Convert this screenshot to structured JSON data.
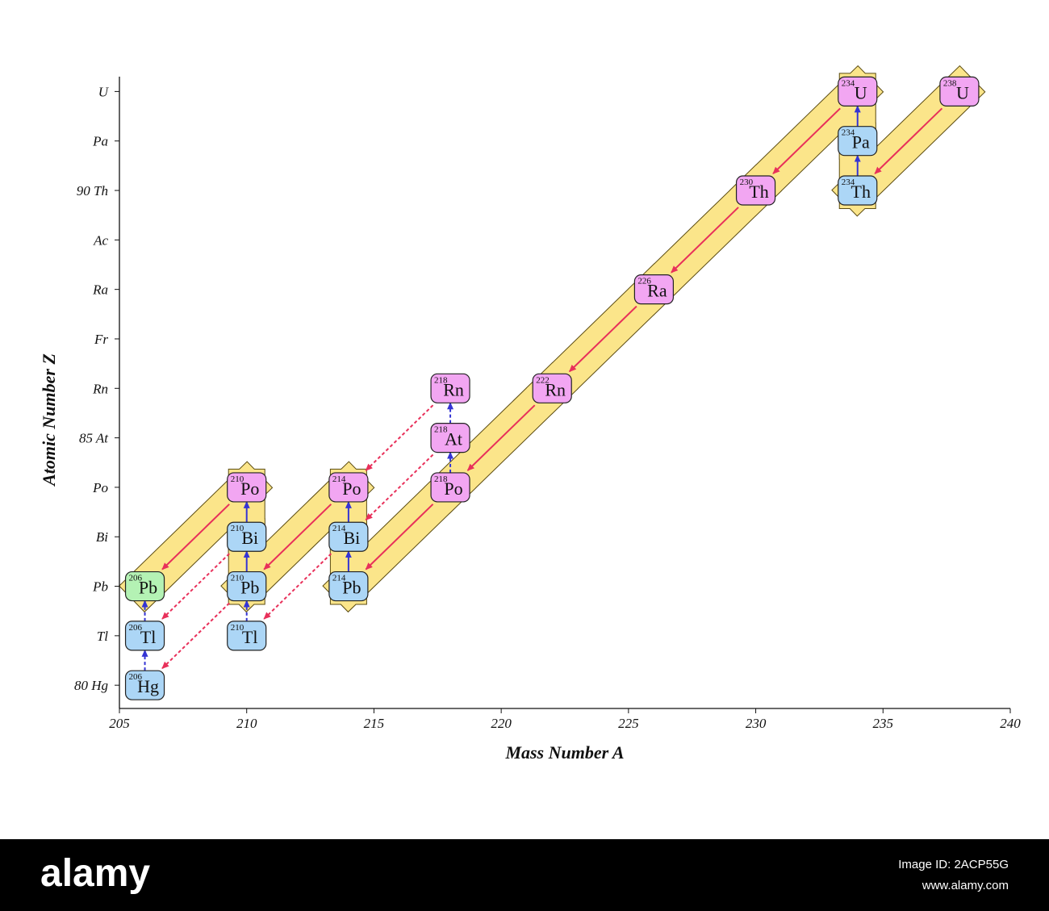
{
  "chart_data": {
    "type": "decay-chain",
    "xlabel": "Mass Number A",
    "ylabel": "Atomic Number Z",
    "xlim": [
      205,
      240
    ],
    "xticks": [
      205,
      210,
      215,
      220,
      225,
      230,
      235,
      240
    ],
    "ylim": [
      79.53,
      92.3
    ],
    "yticks": [
      {
        "value": 80,
        "label": "80 Hg"
      },
      {
        "value": 81,
        "label": "Tl"
      },
      {
        "value": 82,
        "label": "Pb"
      },
      {
        "value": 83,
        "label": "Bi"
      },
      {
        "value": 84,
        "label": "Po"
      },
      {
        "value": 85,
        "label": "85 At"
      },
      {
        "value": 86,
        "label": "Rn"
      },
      {
        "value": 87,
        "label": "Fr"
      },
      {
        "value": 88,
        "label": "Ra"
      },
      {
        "value": 89,
        "label": "Ac"
      },
      {
        "value": 90,
        "label": "90 Th"
      },
      {
        "value": 91,
        "label": "Pa"
      },
      {
        "value": 92,
        "label": "U"
      }
    ],
    "alpha_color": "#e8305a",
    "beta_color": "#3434d4",
    "band_color": "#fbe58a",
    "nodes": [
      {
        "mass": 238,
        "Z": 92,
        "symbol": "U",
        "color": "#f2a6f2",
        "branch": "main"
      },
      {
        "mass": 234,
        "Z": 90,
        "symbol": "Th",
        "color": "#acd6f6",
        "branch": "main"
      },
      {
        "mass": 234,
        "Z": 91,
        "symbol": "Pa",
        "color": "#acd6f6",
        "branch": "main"
      },
      {
        "mass": 234,
        "Z": 92,
        "symbol": "U",
        "color": "#f2a6f2",
        "branch": "main"
      },
      {
        "mass": 230,
        "Z": 90,
        "symbol": "Th",
        "color": "#f2a6f2",
        "branch": "main"
      },
      {
        "mass": 226,
        "Z": 88,
        "symbol": "Ra",
        "color": "#f2a6f2",
        "branch": "main"
      },
      {
        "mass": 222,
        "Z": 86,
        "symbol": "Rn",
        "color": "#f2a6f2",
        "branch": "main"
      },
      {
        "mass": 218,
        "Z": 84,
        "symbol": "Po",
        "color": "#f2a6f2",
        "branch": "main"
      },
      {
        "mass": 218,
        "Z": 85,
        "symbol": "At",
        "color": "#f2a6f2",
        "branch": "minor"
      },
      {
        "mass": 218,
        "Z": 86,
        "symbol": "Rn",
        "color": "#f2a6f2",
        "branch": "minor"
      },
      {
        "mass": 214,
        "Z": 82,
        "symbol": "Pb",
        "color": "#acd6f6",
        "branch": "main"
      },
      {
        "mass": 214,
        "Z": 83,
        "symbol": "Bi",
        "color": "#acd6f6",
        "branch": "main"
      },
      {
        "mass": 214,
        "Z": 84,
        "symbol": "Po",
        "color": "#f2a6f2",
        "branch": "main"
      },
      {
        "mass": 210,
        "Z": 81,
        "symbol": "Tl",
        "color": "#acd6f6",
        "branch": "minor"
      },
      {
        "mass": 210,
        "Z": 82,
        "symbol": "Pb",
        "color": "#acd6f6",
        "branch": "main"
      },
      {
        "mass": 210,
        "Z": 83,
        "symbol": "Bi",
        "color": "#acd6f6",
        "branch": "main"
      },
      {
        "mass": 210,
        "Z": 84,
        "symbol": "Po",
        "color": "#f2a6f2",
        "branch": "main"
      },
      {
        "mass": 206,
        "Z": 80,
        "symbol": "Hg",
        "color": "#acd6f6",
        "branch": "minor"
      },
      {
        "mass": 206,
        "Z": 81,
        "symbol": "Tl",
        "color": "#acd6f6",
        "branch": "minor"
      },
      {
        "mass": 206,
        "Z": 82,
        "symbol": "Pb",
        "color": "#b4f2b4",
        "branch": "main"
      }
    ]
  },
  "footer": {
    "brand": "alamy",
    "image_id": "Image ID: 2ACP55G",
    "url": "www.alamy.com"
  }
}
